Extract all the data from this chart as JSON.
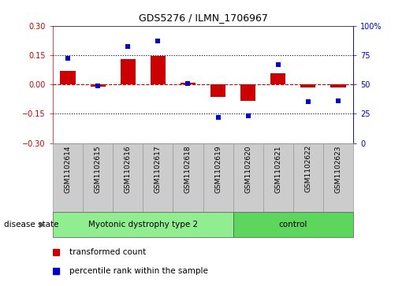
{
  "title": "GDS5276 / ILMN_1706967",
  "samples": [
    "GSM1102614",
    "GSM1102615",
    "GSM1102616",
    "GSM1102617",
    "GSM1102618",
    "GSM1102619",
    "GSM1102620",
    "GSM1102621",
    "GSM1102622",
    "GSM1102623"
  ],
  "transformed_count": [
    0.07,
    -0.01,
    0.13,
    0.145,
    0.01,
    -0.065,
    -0.085,
    0.055,
    -0.015,
    -0.015
  ],
  "percentile_rank": [
    72,
    49,
    82,
    87,
    51,
    22,
    23,
    67,
    35,
    36
  ],
  "ylim_left": [
    -0.3,
    0.3
  ],
  "ylim_right": [
    0,
    100
  ],
  "yticks_left": [
    -0.3,
    -0.15,
    0.0,
    0.15,
    0.3
  ],
  "yticks_right": [
    0,
    25,
    50,
    75,
    100
  ],
  "hlines": [
    0.15,
    -0.15
  ],
  "disease_groups": [
    {
      "label": "Myotonic dystrophy type 2",
      "start": 0,
      "end": 6,
      "color": "#90EE90"
    },
    {
      "label": "control",
      "start": 6,
      "end": 10,
      "color": "#5CD65C"
    }
  ],
  "bar_color": "#CC0000",
  "dot_color": "#0000CC",
  "zero_line_color": "#CC0000",
  "dotted_line_color": "#000000",
  "bg_color": "#FFFFFF",
  "tick_bg_color": "#CCCCCC",
  "tick_edge_color": "#999999",
  "disease_state_label": "disease state",
  "legend_items": [
    {
      "label": "transformed count",
      "color": "#CC0000",
      "marker": "s"
    },
    {
      "label": "percentile rank within the sample",
      "color": "#0000CC",
      "marker": "s"
    }
  ],
  "fig_width": 5.15,
  "fig_height": 3.63,
  "dpi": 100
}
